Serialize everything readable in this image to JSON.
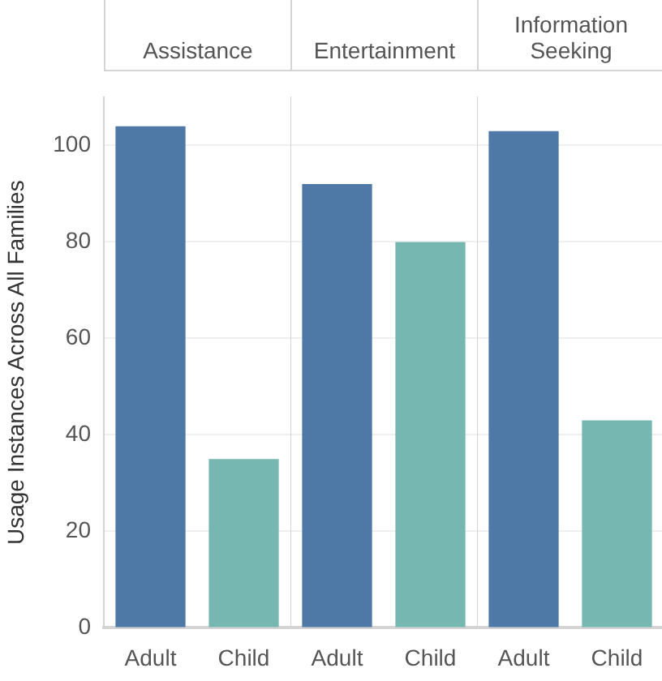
{
  "chart_data": [
    {
      "type": "bar",
      "title": "Assistance",
      "ylabel": "Usage Instances Across All Families",
      "categories": [
        "Adult",
        "Child"
      ],
      "values": [
        104,
        35
      ],
      "colors": [
        "#4e79a7",
        "#76b7b2"
      ],
      "ylim": [
        0,
        110
      ],
      "yticks": [
        0,
        20,
        40,
        60,
        80,
        100
      ],
      "grid": "y"
    },
    {
      "type": "bar",
      "title": "Entertainment",
      "categories": [
        "Adult",
        "Child"
      ],
      "values": [
        92,
        80
      ],
      "colors": [
        "#4e79a7",
        "#76b7b2"
      ],
      "ylim": [
        0,
        110
      ],
      "yticks": [
        0,
        20,
        40,
        60,
        80,
        100
      ],
      "grid": "y",
      "tick_labels": "x"
    },
    {
      "type": "bar",
      "title": "Information Seeking",
      "categories": [
        "Adult",
        "Child"
      ],
      "values": [
        103,
        43
      ],
      "colors": [
        "#4e79a7",
        "#76b7b2"
      ],
      "ylim": [
        0,
        110
      ],
      "yticks": [
        0,
        20,
        40,
        60,
        80,
        100
      ],
      "grid": "y",
      "tick_labels": "x"
    }
  ]
}
